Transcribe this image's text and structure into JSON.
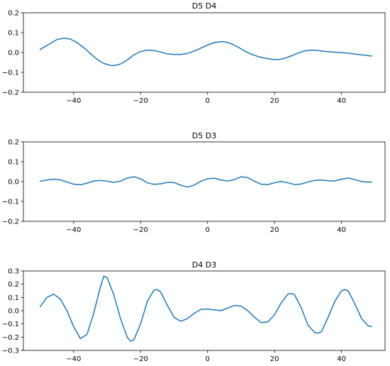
{
  "chart_data": [
    {
      "type": "line",
      "title": "D5  D4",
      "xlim": [
        -55,
        53
      ],
      "ylim": [
        -0.2,
        0.2
      ],
      "xticks": [
        -40,
        -20,
        0,
        20,
        40
      ],
      "xtick_labels": [
        "−40",
        "−20",
        "0",
        "20",
        "40"
      ],
      "yticks": [
        -0.2,
        -0.1,
        0.0,
        0.1,
        0.2
      ],
      "ytick_labels": [
        "−0.2",
        "−0.1",
        "0.0",
        "0.1",
        "0.2"
      ],
      "color": "#1f77b4",
      "series": [
        {
          "x": [
            -50,
            -47,
            -45,
            -43,
            -41,
            -39,
            -37,
            -35,
            -33,
            -31,
            -29,
            -28,
            -26,
            -24,
            -22,
            -20,
            -18,
            -16,
            -14,
            -12,
            -10,
            -8,
            -6,
            -4,
            -2,
            0,
            2,
            4,
            5,
            7,
            9,
            11,
            13,
            15,
            17,
            19,
            21,
            23,
            25,
            27,
            29,
            31,
            33,
            35,
            37,
            39,
            41,
            43,
            45,
            47,
            49
          ],
          "y": [
            0.015,
            0.045,
            0.065,
            0.072,
            0.068,
            0.05,
            0.025,
            -0.005,
            -0.035,
            -0.055,
            -0.065,
            -0.066,
            -0.058,
            -0.038,
            -0.012,
            0.005,
            0.012,
            0.01,
            0.002,
            -0.007,
            -0.01,
            -0.01,
            -0.005,
            0.007,
            0.022,
            0.038,
            0.05,
            0.054,
            0.054,
            0.045,
            0.028,
            0.008,
            -0.008,
            -0.02,
            -0.028,
            -0.034,
            -0.036,
            -0.03,
            -0.017,
            -0.003,
            0.008,
            0.012,
            0.01,
            0.006,
            0.003,
            0.0,
            -0.002,
            -0.006,
            -0.01,
            -0.014,
            -0.018
          ]
        }
      ]
    },
    {
      "type": "line",
      "title": "D5  D3",
      "xlim": [
        -55,
        53
      ],
      "ylim": [
        -0.2,
        0.2
      ],
      "xticks": [
        -40,
        -20,
        0,
        20,
        40
      ],
      "xtick_labels": [
        "−40",
        "−20",
        "0",
        "20",
        "40"
      ],
      "yticks": [
        -0.2,
        -0.1,
        0.0,
        0.1,
        0.2
      ],
      "ytick_labels": [
        "−0.2",
        "−0.1",
        "0.0",
        "0.1",
        "0.2"
      ],
      "color": "#1f77b4",
      "series": [
        {
          "x": [
            -50,
            -48,
            -46,
            -44,
            -42,
            -40,
            -38,
            -36,
            -34,
            -32,
            -30,
            -28,
            -26,
            -24,
            -22,
            -20,
            -18,
            -16,
            -14,
            -12,
            -10,
            -8,
            -6,
            -4,
            -2,
            0,
            2,
            4,
            6,
            8,
            10,
            12,
            14,
            16,
            18,
            20,
            22,
            24,
            26,
            28,
            30,
            32,
            34,
            36,
            38,
            40,
            42,
            44,
            46,
            48,
            49
          ],
          "y": [
            0.002,
            0.008,
            0.012,
            0.009,
            -0.002,
            -0.013,
            -0.016,
            -0.008,
            0.003,
            0.006,
            0.002,
            -0.004,
            0.002,
            0.018,
            0.024,
            0.014,
            -0.006,
            -0.014,
            -0.011,
            -0.004,
            -0.005,
            -0.018,
            -0.028,
            -0.018,
            0.002,
            0.014,
            0.017,
            0.008,
            0.003,
            0.01,
            0.024,
            0.02,
            0.002,
            -0.013,
            -0.015,
            -0.006,
            0.001,
            -0.006,
            -0.015,
            -0.012,
            -0.002,
            0.006,
            0.008,
            0.004,
            0.003,
            0.012,
            0.018,
            0.01,
            0.0,
            -0.003,
            -0.002
          ]
        }
      ]
    },
    {
      "type": "line",
      "title": "D4  D3",
      "xlim": [
        -55,
        53
      ],
      "ylim": [
        -0.3,
        0.3
      ],
      "xticks": [
        -40,
        -20,
        0,
        20,
        40
      ],
      "xtick_labels": [
        "−40",
        "−20",
        "0",
        "20",
        "40"
      ],
      "yticks": [
        -0.3,
        -0.2,
        -0.1,
        0.0,
        0.1,
        0.2,
        0.3
      ],
      "ytick_labels": [
        "−0.3",
        "−0.2",
        "−0.1",
        "0.0",
        "0.1",
        "0.2",
        "0.3"
      ],
      "color": "#1f77b4",
      "series": [
        {
          "x": [
            -50,
            -48,
            -46,
            -44,
            -42,
            -40,
            -38,
            -36,
            -34,
            -32,
            -31,
            -30,
            -28,
            -26,
            -24,
            -23,
            -22,
            -20,
            -18,
            -16,
            -15,
            -14,
            -12,
            -10,
            -8,
            -6,
            -4,
            -2,
            0,
            2,
            4,
            6,
            8,
            10,
            12,
            14,
            16,
            18,
            20,
            22,
            24,
            25,
            26,
            28,
            30,
            32,
            33,
            34,
            36,
            38,
            40,
            41,
            42,
            44,
            46,
            48,
            49
          ],
          "y": [
            0.03,
            0.1,
            0.125,
            0.09,
            0.0,
            -0.12,
            -0.21,
            -0.18,
            -0.02,
            0.18,
            0.26,
            0.25,
            0.12,
            -0.06,
            -0.2,
            -0.23,
            -0.22,
            -0.1,
            0.07,
            0.155,
            0.16,
            0.14,
            0.04,
            -0.05,
            -0.08,
            -0.06,
            -0.02,
            0.01,
            0.012,
            0.006,
            0.0,
            0.02,
            0.04,
            0.035,
            0.0,
            -0.05,
            -0.09,
            -0.085,
            -0.03,
            0.06,
            0.125,
            0.13,
            0.12,
            0.02,
            -0.11,
            -0.165,
            -0.17,
            -0.16,
            -0.05,
            0.07,
            0.15,
            0.16,
            0.15,
            0.05,
            -0.06,
            -0.115,
            -0.12
          ]
        }
      ]
    }
  ]
}
